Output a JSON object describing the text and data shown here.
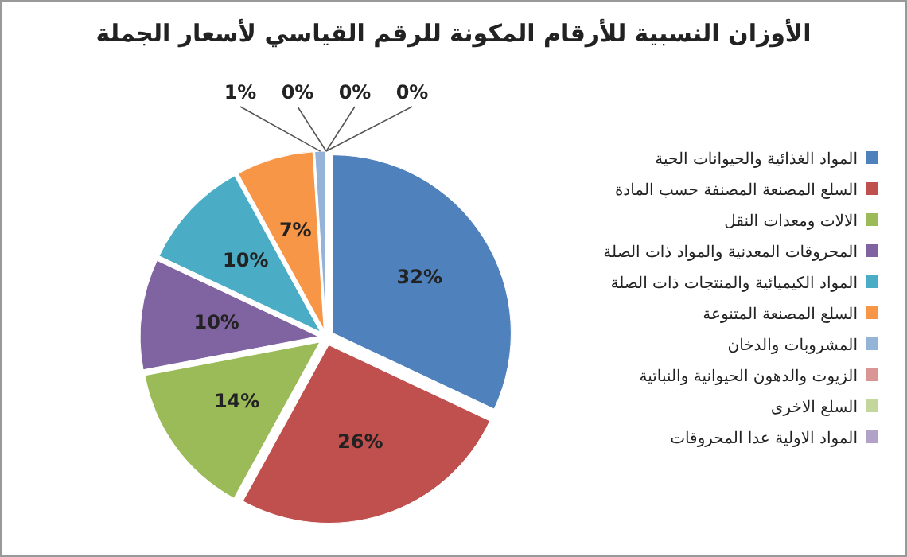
{
  "chart_data": {
    "type": "pie",
    "title": "الأوزان النسبية للأرقام المكونة للرقم القياسي لأسعار الجملة",
    "categories": [
      "المواد الغذائية والحيوانات الحية",
      "السلع المصنعة المصنفة حسب المادة",
      "الالات ومعدات النقل",
      "المحروقات المعدنية والمواد ذات الصلة",
      "المواد الكيميائية والمنتجات ذات الصلة",
      "السلع المصنعة المتنوعة",
      "المشروبات والدخان",
      "الزيوت والدهون الحيوانية والنباتية",
      "السلع الاخرى",
      "المواد الاولية عدا المحروقات"
    ],
    "values": [
      32,
      26,
      14,
      10,
      10,
      7,
      1,
      0,
      0,
      0
    ],
    "colors": [
      "#4f81bd",
      "#c0504d",
      "#9bbb59",
      "#8064a2",
      "#4bacc6",
      "#f79646",
      "#95b3d7",
      "#d99694",
      "#c3d69b",
      "#b3a2c7"
    ],
    "value_labels": [
      "32%",
      "26%",
      "14%",
      "10%",
      "10%",
      "7%",
      "1%",
      "0%",
      "0%",
      "0%"
    ],
    "legend": "right"
  }
}
